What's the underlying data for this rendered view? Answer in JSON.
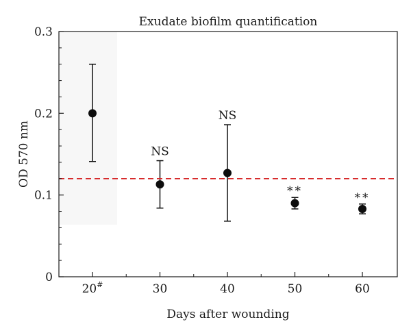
{
  "chart_data": {
    "type": "scatter",
    "title": "Exudate biofilm quantification",
    "xlabel": "Days after wounding",
    "ylabel": "OD 570 nm",
    "ylim": [
      0,
      0.3
    ],
    "yticks": [
      "0",
      "0.1",
      "0.2",
      "0.3"
    ],
    "categories": [
      {
        "label": "20",
        "superscript": "#"
      },
      {
        "label": "30",
        "superscript": ""
      },
      {
        "label": "40",
        "superscript": ""
      },
      {
        "label": "50",
        "superscript": ""
      },
      {
        "label": "60",
        "superscript": ""
      }
    ],
    "values": [
      0.2,
      0.113,
      0.127,
      0.09,
      0.083
    ],
    "error_low": [
      0.141,
      0.084,
      0.068,
      0.083,
      0.077
    ],
    "error_high": [
      0.26,
      0.142,
      0.186,
      0.097,
      0.089
    ],
    "annotations": [
      "",
      "NS",
      "NS",
      "**",
      "**"
    ],
    "reference_line": {
      "y": 0.12,
      "style": "dashed",
      "color": "#d62728"
    },
    "grid": false,
    "legend": "none"
  }
}
